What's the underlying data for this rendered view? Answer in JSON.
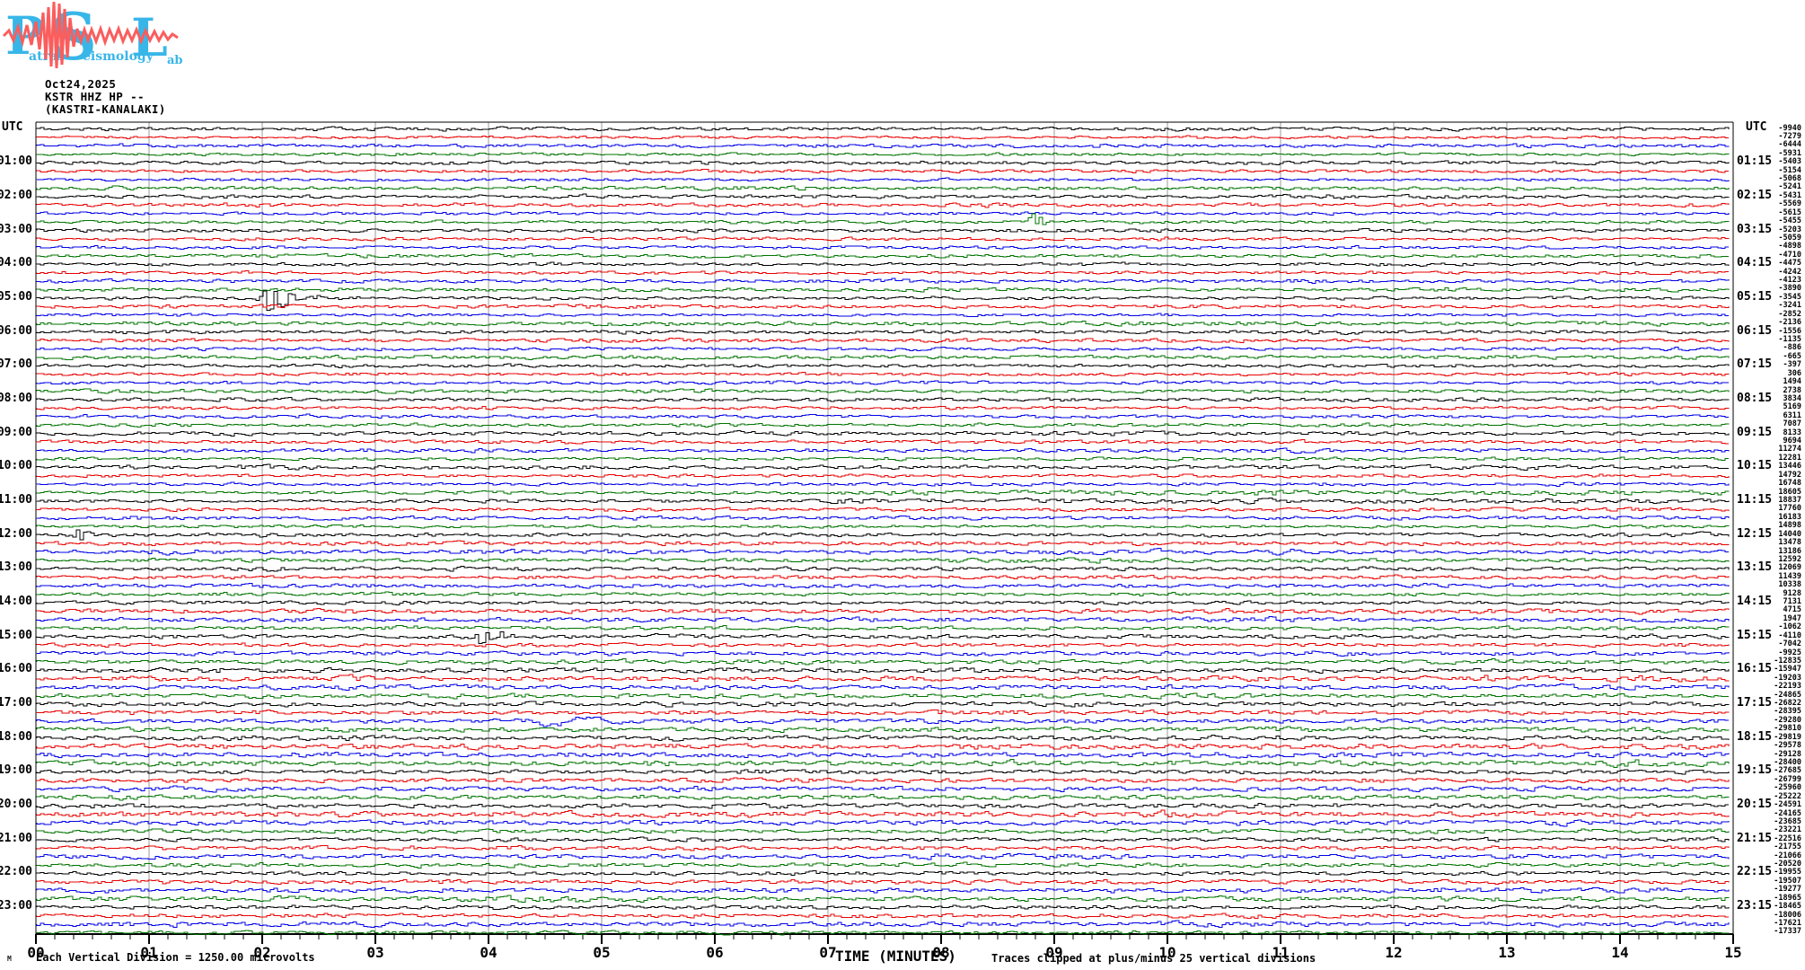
{
  "meta": {
    "date": "Oct24,2025",
    "station_line": "KSTR HHZ HP --",
    "station_name": "(KASTRI-KANALAKI)"
  },
  "logo": {
    "letter_p": "P",
    "word_p": "atras",
    "letter_s": "S",
    "word_s": "eismology",
    "letter_l": "L",
    "word_l": "ab",
    "letter_color": "#38b6e8",
    "wave_color": "#fb5d5d"
  },
  "labels": {
    "utc": "UTC",
    "left_hours": [
      "01:00",
      "02:00",
      "03:00",
      "04:00",
      "05:00",
      "06:00",
      "07:00",
      "08:00",
      "09:00",
      "10:00",
      "11:00",
      "12:00",
      "13:00",
      "14:00",
      "15:00",
      "16:00",
      "17:00",
      "18:00",
      "19:00",
      "20:00",
      "21:00",
      "22:00",
      "23:00"
    ],
    "right_hours": [
      "01:15",
      "02:15",
      "03:15",
      "04:15",
      "05:15",
      "06:15",
      "07:15",
      "08:15",
      "09:15",
      "10:15",
      "11:15",
      "12:15",
      "13:15",
      "14:15",
      "15:15",
      "16:15",
      "17:15",
      "18:15",
      "19:15",
      "20:15",
      "21:15",
      "22:15",
      "23:15"
    ],
    "x_ticks": [
      "00",
      "01",
      "02",
      "03",
      "04",
      "05",
      "06",
      "07",
      "08",
      "09",
      "10",
      "11",
      "12",
      "13",
      "14",
      "15"
    ]
  },
  "axis": {
    "title": "TIME (MINUTES)",
    "note": "Traces clipped at plus/minus 25 vertical divisions"
  },
  "footer": {
    "mark": "M",
    "scale_note": "Each Vertical Division = 1250.00 microvolts"
  },
  "chart_data": {
    "type": "line",
    "subtype": "helicorder-seismogram",
    "title": "KSTR HHZ HP -- (KASTRI-KANALAKI)",
    "date": "Oct24,2025",
    "xlabel": "TIME (MINUTES)",
    "x_range_minutes": [
      0,
      15
    ],
    "minutes_per_line": 15,
    "lines_per_hour": 4,
    "hours_shown": 24,
    "first_row_start_time": "00:00",
    "row_interval_minutes": 15,
    "grid": "vertical gridline every 1 minute",
    "legend_position": "none",
    "trace_color_cycle": [
      "#000000",
      "#e80000",
      "#0000e8",
      "#007400"
    ],
    "scale_microvolts_per_division": 1250.0,
    "clip_divisions": 25,
    "row_end_values": [
      -9940,
      -7279,
      -6444,
      -5931,
      -5403,
      -5154,
      -5068,
      -5241,
      -5431,
      -5569,
      -5615,
      -5455,
      -5203,
      -5059,
      -4898,
      -4710,
      -4475,
      -4242,
      -4123,
      -3890,
      -3545,
      -3241,
      -2852,
      -2136,
      -1556,
      -1135,
      -886,
      -665,
      -397,
      306,
      1494,
      2738,
      3834,
      5169,
      6311,
      7087,
      8133,
      9694,
      11274,
      12281,
      13446,
      14792,
      16748,
      18605,
      18837,
      17760,
      16183,
      14898,
      14040,
      13478,
      13186,
      12592,
      12069,
      11439,
      10338,
      9128,
      7131,
      4715,
      1947,
      -1062,
      -4110,
      -7042,
      -9925,
      -12835,
      -15947,
      -19203,
      -22193,
      -24865,
      -26822,
      -28395,
      -29280,
      -29810,
      -29819,
      -29578,
      -29128,
      -28400,
      -27685,
      -26799,
      -25960,
      -25222,
      -24591,
      -24165,
      -23685,
      -23221,
      -22516,
      -21755,
      -21066,
      -20520,
      -19955,
      -19507,
      -19277,
      -18965,
      -18465,
      -18006,
      -17621,
      -17337
    ],
    "events": [
      {
        "row": 20,
        "time": "05:00",
        "minute": 2.03,
        "kind": "spike",
        "peak": 10,
        "width_min": 0.1
      },
      {
        "row": 11,
        "time": "02:45",
        "minute": 8.8,
        "kind": "spike",
        "peak": 5,
        "width_min": 0.06
      },
      {
        "row": 60,
        "time": "15:00",
        "minute": 3.93,
        "kind": "spike",
        "peak": 7,
        "width_min": 0.08
      },
      {
        "row": 48,
        "time": "12:00",
        "minute": 0.36,
        "kind": "spike",
        "peak": 4,
        "width_min": 0.05
      },
      {
        "row": 70,
        "time": "17:30",
        "minute": 4.7,
        "kind": "swell",
        "peak": 5,
        "width_min": 0.85
      },
      {
        "row": 43,
        "time": "10:45",
        "minute": 11.5,
        "kind": "boost",
        "peak": 1.5,
        "width_min": 4.5
      },
      {
        "row": 44,
        "time": "11:00",
        "minute": 11.5,
        "kind": "boost",
        "peak": 1.6,
        "width_min": 4.5
      }
    ]
  }
}
